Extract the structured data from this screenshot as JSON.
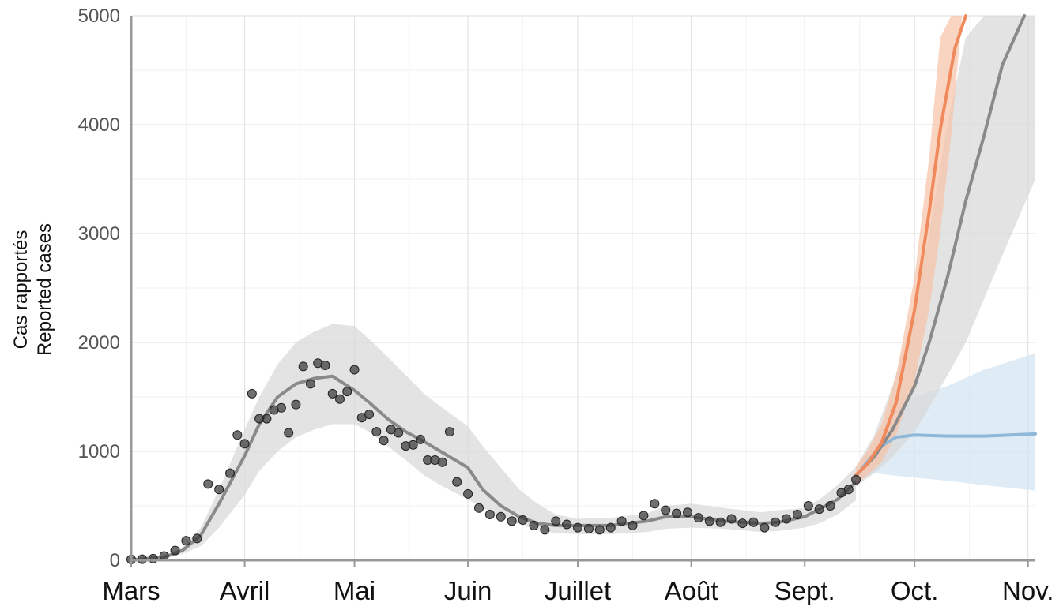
{
  "chart_data": {
    "type": "line",
    "title": "",
    "ylabel": [
      "Cas rapportés",
      "Reported cases"
    ],
    "xlabel": "",
    "x_tick_labels": [
      "Mars",
      "Avril",
      "Mai",
      "Juin",
      "Juillet",
      "Août",
      "Sept.",
      "Oct.",
      "Nov."
    ],
    "x_tick_dates": [
      "2020-03-01",
      "2020-04-01",
      "2020-05-01",
      "2020-06-01",
      "2020-07-01",
      "2020-08-01",
      "2020-09-01",
      "2020-10-01",
      "2020-11-01"
    ],
    "xlim": [
      "2020-03-01",
      "2020-11-03"
    ],
    "y_ticks": [
      0,
      1000,
      2000,
      3000,
      4000,
      5000
    ],
    "y_tick_labels": [
      "0",
      "1000",
      "2000",
      "3000",
      "4000",
      "5000"
    ],
    "ylim": [
      0,
      5000
    ],
    "grid": true,
    "colors": {
      "observed_points": "#333333",
      "fit_line": "#8a8a8a",
      "fit_band": "#d9d9d9",
      "orange_line": "#f08a5d",
      "orange_band": "#f6c2a6",
      "blue_line": "#8fb8d8",
      "blue_band": "#d4e4f2",
      "gray_projection_line": "#8a8a8a"
    },
    "series": [
      {
        "kind": "band",
        "color_key": "fit_band",
        "x": [
          "2020-03-01",
          "2020-03-10",
          "2020-03-15",
          "2020-03-20",
          "2020-03-25",
          "2020-04-01",
          "2020-04-05",
          "2020-04-10",
          "2020-04-15",
          "2020-04-20",
          "2020-04-25",
          "2020-05-01",
          "2020-05-05",
          "2020-05-10",
          "2020-05-15",
          "2020-05-20",
          "2020-05-25",
          "2020-06-01",
          "2020-06-05",
          "2020-06-10",
          "2020-06-15",
          "2020-06-20",
          "2020-06-25",
          "2020-07-01",
          "2020-07-10",
          "2020-07-20",
          "2020-07-25",
          "2020-08-01",
          "2020-08-10",
          "2020-08-20",
          "2020-08-25",
          "2020-09-01",
          "2020-09-05",
          "2020-09-10",
          "2020-09-15"
        ],
        "lower": [
          0,
          15,
          60,
          130,
          300,
          600,
          820,
          1000,
          1130,
          1200,
          1250,
          1250,
          1180,
          1050,
          920,
          780,
          680,
          560,
          480,
          400,
          330,
          280,
          250,
          240,
          240,
          260,
          290,
          300,
          290,
          260,
          270,
          300,
          340,
          420,
          550
        ],
        "upper": [
          10,
          40,
          120,
          300,
          650,
          1200,
          1500,
          1800,
          2000,
          2100,
          2170,
          2150,
          2030,
          1870,
          1700,
          1530,
          1400,
          1230,
          1050,
          850,
          650,
          520,
          420,
          380,
          390,
          430,
          500,
          520,
          480,
          440,
          460,
          480,
          560,
          690,
          860
        ]
      },
      {
        "kind": "line",
        "name": "",
        "color_key": "fit_line",
        "x": [
          "2020-03-01",
          "2020-03-10",
          "2020-03-15",
          "2020-03-20",
          "2020-03-25",
          "2020-04-01",
          "2020-04-05",
          "2020-04-10",
          "2020-04-15",
          "2020-04-20",
          "2020-04-25",
          "2020-05-01",
          "2020-05-05",
          "2020-05-10",
          "2020-05-15",
          "2020-05-20",
          "2020-05-25",
          "2020-06-01",
          "2020-06-05",
          "2020-06-10",
          "2020-06-15",
          "2020-06-20",
          "2020-06-25",
          "2020-07-01",
          "2020-07-10",
          "2020-07-20",
          "2020-07-25",
          "2020-08-01",
          "2020-08-10",
          "2020-08-20",
          "2020-08-25",
          "2020-09-01",
          "2020-09-05",
          "2020-09-10",
          "2020-09-15"
        ],
        "y": [
          5,
          30,
          90,
          230,
          520,
          960,
          1250,
          1500,
          1620,
          1670,
          1690,
          1560,
          1450,
          1300,
          1180,
          1090,
          990,
          850,
          650,
          500,
          400,
          340,
          320,
          320,
          320,
          360,
          400,
          400,
          360,
          340,
          350,
          400,
          470,
          560,
          720
        ]
      },
      {
        "kind": "band",
        "color_key": "blue_band",
        "x": [
          "2020-09-15",
          "2020-09-20",
          "2020-09-25",
          "2020-10-01",
          "2020-10-10",
          "2020-10-20",
          "2020-11-03"
        ],
        "lower": [
          720,
          800,
          780,
          760,
          730,
          690,
          640
        ],
        "upper": [
          780,
          1100,
          1350,
          1500,
          1600,
          1750,
          1900
        ]
      },
      {
        "kind": "band",
        "color_key": "fit_band",
        "x": [
          "2020-09-15",
          "2020-09-20",
          "2020-09-25",
          "2020-10-01",
          "2020-10-05",
          "2020-10-10",
          "2020-10-15",
          "2020-10-20",
          "2020-10-25",
          "2020-11-03"
        ],
        "lower": [
          680,
          800,
          950,
          1180,
          1400,
          1700,
          2000,
          2400,
          2800,
          3500
        ],
        "upper": [
          860,
          1150,
          1600,
          2300,
          3000,
          4000,
          4800,
          5000,
          5000,
          5000
        ]
      },
      {
        "kind": "band",
        "color_key": "orange_band",
        "x": [
          "2020-09-15",
          "2020-09-18",
          "2020-09-22",
          "2020-09-26",
          "2020-10-01",
          "2020-10-05",
          "2020-10-08",
          "2020-10-11",
          "2020-10-14",
          "2020-10-18"
        ],
        "lower": [
          700,
          780,
          900,
          1150,
          1650,
          2300,
          3000,
          3900,
          5000,
          5000
        ],
        "upper": [
          860,
          1000,
          1250,
          1700,
          2600,
          3700,
          4800,
          5000,
          5000,
          5000
        ]
      },
      {
        "kind": "line",
        "name": "",
        "color_key": "blue_line",
        "x": [
          "2020-09-15",
          "2020-09-18",
          "2020-09-22",
          "2020-09-26",
          "2020-10-01",
          "2020-10-10",
          "2020-10-20",
          "2020-11-03"
        ],
        "y": [
          770,
          900,
          1050,
          1130,
          1150,
          1140,
          1140,
          1160
        ]
      },
      {
        "kind": "line",
        "name": "",
        "color_key": "gray_projection_line",
        "x": [
          "2020-09-15",
          "2020-09-20",
          "2020-09-25",
          "2020-10-01",
          "2020-10-05",
          "2020-10-10",
          "2020-10-15",
          "2020-10-20",
          "2020-10-25",
          "2020-10-31"
        ],
        "y": [
          780,
          950,
          1200,
          1600,
          2000,
          2600,
          3300,
          3900,
          4550,
          5000
        ]
      },
      {
        "kind": "line",
        "name": "",
        "color_key": "orange_line",
        "x": [
          "2020-09-15",
          "2020-09-18",
          "2020-09-22",
          "2020-09-26",
          "2020-10-01",
          "2020-10-05",
          "2020-10-08",
          "2020-10-12",
          "2020-10-15"
        ],
        "y": [
          780,
          880,
          1080,
          1450,
          2300,
          3200,
          3950,
          4700,
          5000
        ]
      },
      {
        "kind": "scatter",
        "name": "",
        "color_key": "observed_points",
        "x": [
          "2020-03-01",
          "2020-03-04",
          "2020-03-07",
          "2020-03-10",
          "2020-03-13",
          "2020-03-16",
          "2020-03-19",
          "2020-03-22",
          "2020-03-25",
          "2020-03-28",
          "2020-03-30",
          "2020-04-01",
          "2020-04-03",
          "2020-04-05",
          "2020-04-07",
          "2020-04-09",
          "2020-04-11",
          "2020-04-13",
          "2020-04-15",
          "2020-04-17",
          "2020-04-19",
          "2020-04-21",
          "2020-04-23",
          "2020-04-25",
          "2020-04-27",
          "2020-04-29",
          "2020-05-01",
          "2020-05-03",
          "2020-05-05",
          "2020-05-07",
          "2020-05-09",
          "2020-05-11",
          "2020-05-13",
          "2020-05-15",
          "2020-05-17",
          "2020-05-19",
          "2020-05-21",
          "2020-05-23",
          "2020-05-25",
          "2020-05-27",
          "2020-05-29",
          "2020-06-01",
          "2020-06-04",
          "2020-06-07",
          "2020-06-10",
          "2020-06-13",
          "2020-06-16",
          "2020-06-19",
          "2020-06-22",
          "2020-06-25",
          "2020-06-28",
          "2020-07-01",
          "2020-07-04",
          "2020-07-07",
          "2020-07-10",
          "2020-07-13",
          "2020-07-16",
          "2020-07-19",
          "2020-07-22",
          "2020-07-25",
          "2020-07-28",
          "2020-07-31",
          "2020-08-03",
          "2020-08-06",
          "2020-08-09",
          "2020-08-12",
          "2020-08-15",
          "2020-08-18",
          "2020-08-21",
          "2020-08-24",
          "2020-08-27",
          "2020-08-30",
          "2020-09-02",
          "2020-09-05",
          "2020-09-08",
          "2020-09-11",
          "2020-09-13",
          "2020-09-15"
        ],
        "y": [
          8,
          10,
          15,
          40,
          90,
          180,
          200,
          700,
          650,
          800,
          1150,
          1070,
          1530,
          1300,
          1300,
          1380,
          1400,
          1170,
          1430,
          1780,
          1620,
          1810,
          1790,
          1530,
          1480,
          1550,
          1750,
          1310,
          1340,
          1180,
          1100,
          1200,
          1170,
          1050,
          1060,
          1110,
          920,
          920,
          900,
          1180,
          720,
          610,
          480,
          420,
          400,
          360,
          370,
          320,
          280,
          360,
          330,
          300,
          290,
          280,
          300,
          360,
          320,
          410,
          520,
          460,
          430,
          440,
          390,
          360,
          350,
          380,
          340,
          350,
          300,
          350,
          380,
          420,
          500,
          470,
          500,
          620,
          650,
          740
        ]
      }
    ]
  }
}
